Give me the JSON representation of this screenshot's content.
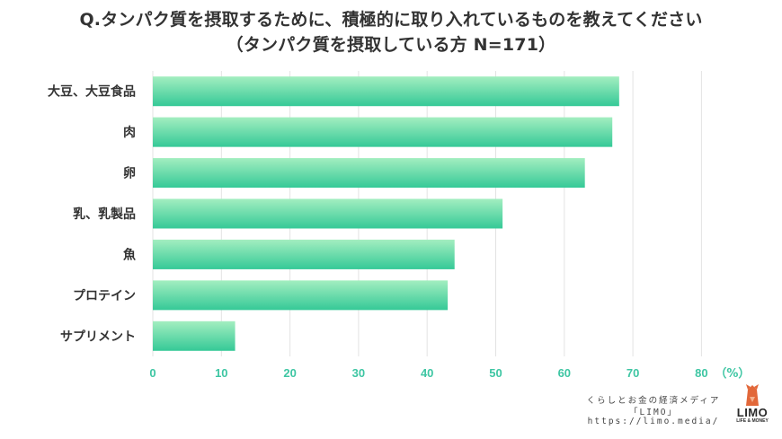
{
  "title_line1": "Q.タンパク質を摂取するために、積極的に取り入れているものを教えてください",
  "title_line2": "（タンパク質を摂取している方 N=171）",
  "chart_data": {
    "type": "bar",
    "orientation": "horizontal",
    "categories": [
      "大豆、大豆食品",
      "肉",
      "卵",
      "乳、乳製品",
      "魚",
      "プロテイン",
      "サプリメント"
    ],
    "values": [
      68.0,
      67.0,
      63.0,
      51.0,
      44.0,
      43.0,
      12.0
    ],
    "xlim": [
      0,
      85
    ],
    "xticks": [
      0,
      10,
      20,
      30,
      40,
      50,
      60,
      70,
      80
    ],
    "unit_label": "（%）",
    "grid": true,
    "colors": {
      "bar_light": "#a3eec0",
      "bar_dark": "#35c997",
      "tick": "#3ec6a3",
      "grid": "#e3e3e3"
    }
  },
  "footer": {
    "tagline": "くらしとお金の経済メディア",
    "brand": "「LIMO」",
    "url": "https://limo.media/"
  },
  "logo": {
    "word": "LIMO",
    "sub": "LIFE & MONEY",
    "icon": "fox-icon"
  }
}
